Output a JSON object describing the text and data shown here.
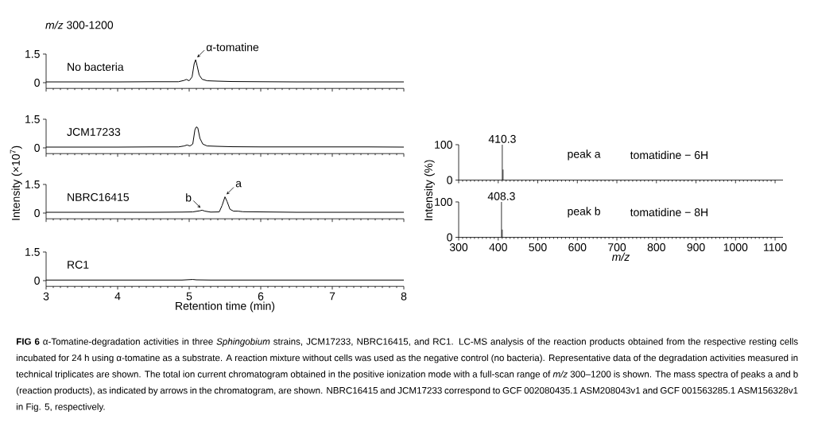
{
  "chart_data": [
    {
      "type": "line",
      "title": "*m/z* 300-1200",
      "xlim": [
        3,
        8
      ],
      "ylim": [
        -0.3,
        1.5
      ],
      "xticks": [
        3,
        4,
        5,
        6,
        7,
        8
      ],
      "yticks": [
        0,
        1.5
      ],
      "tick_labels": "y",
      "series": [
        {
          "name": "No bacteria",
          "color": "#000000",
          "x": [
            3,
            3.5,
            4,
            4.5,
            4.85,
            4.93,
            4.96,
            5.0,
            5.04,
            5.07,
            5.09,
            5.11,
            5.14,
            5.18,
            5.25,
            5.4,
            5.6,
            6,
            6.5,
            7,
            7.5,
            8
          ],
          "values": [
            0.04,
            0.04,
            0.04,
            0.05,
            0.05,
            0.12,
            0.17,
            0.1,
            0.3,
            1.0,
            1.2,
            0.9,
            0.4,
            0.18,
            0.1,
            0.08,
            0.06,
            0.05,
            0.04,
            0.04,
            0.04,
            0.04
          ]
        }
      ],
      "annotations": [
        {
          "text": "α-tomatine",
          "x": 5.09,
          "y": 1.2
        }
      ]
    },
    {
      "type": "line",
      "ylabel": "Intensity (×10$^{7}$)",
      "xlim": [
        3,
        8
      ],
      "ylim": [
        -0.3,
        1.5
      ],
      "xticks": [
        3,
        4,
        5,
        6,
        7,
        8
      ],
      "yticks": [
        0,
        1.5
      ],
      "tick_labels": "y",
      "series": [
        {
          "name": "JCM17233",
          "color": "#000000",
          "x": [
            3,
            3.5,
            4,
            4.5,
            4.85,
            4.93,
            4.97,
            5.01,
            5.05,
            5.08,
            5.1,
            5.12,
            5.15,
            5.19,
            5.25,
            5.4,
            5.6,
            6,
            6.5,
            7,
            7.5,
            8
          ],
          "values": [
            0.04,
            0.04,
            0.04,
            0.05,
            0.05,
            0.1,
            0.15,
            0.1,
            0.2,
            0.95,
            1.1,
            1.05,
            0.5,
            0.2,
            0.1,
            0.08,
            0.06,
            0.05,
            0.05,
            0.05,
            0.05,
            0.04
          ]
        }
      ]
    },
    {
      "type": "line",
      "xlim": [
        3,
        8
      ],
      "ylim": [
        -0.3,
        1.5
      ],
      "xticks": [
        3,
        4,
        5,
        6,
        7,
        8
      ],
      "yticks": [
        0,
        1.5
      ],
      "tick_labels": "y",
      "series": [
        {
          "name": "NBRC16415",
          "color": "#000000",
          "x": [
            3,
            3.5,
            4,
            4.5,
            4.9,
            5.05,
            5.1,
            5.15,
            5.18,
            5.22,
            5.3,
            5.42,
            5.46,
            5.5,
            5.53,
            5.57,
            5.62,
            5.68,
            5.75,
            6,
            6.5,
            7,
            7.5,
            8
          ],
          "values": [
            0.04,
            0.04,
            0.04,
            0.04,
            0.05,
            0.06,
            0.09,
            0.12,
            0.15,
            0.1,
            0.05,
            0.06,
            0.4,
            0.85,
            0.6,
            0.2,
            0.1,
            0.1,
            0.07,
            0.06,
            0.04,
            0.04,
            0.04,
            0.04
          ]
        }
      ],
      "annotations": [
        {
          "text": "b",
          "x": 5.18,
          "y": 0.15
        },
        {
          "text": "a",
          "x": 5.5,
          "y": 0.85
        }
      ]
    },
    {
      "type": "line",
      "xlabel": "Retention time (min)",
      "xlim": [
        3,
        8
      ],
      "ylim": [
        -0.3,
        1.5
      ],
      "xticks": [
        3,
        4,
        5,
        6,
        7,
        8
      ],
      "yticks": [
        0,
        1.5
      ],
      "series": [
        {
          "name": "RC1",
          "color": "#000000",
          "x": [
            3,
            4,
            4.9,
            5.0,
            5.05,
            5.1,
            5.3,
            6,
            7,
            8
          ],
          "values": [
            0.03,
            0.03,
            0.03,
            0.05,
            0.06,
            0.04,
            0.03,
            0.03,
            0.03,
            0.03
          ]
        }
      ],
      "annotations": [
        "**FIG 6** α-Tomatine-degradation activities in three *Sphingobium* strains, JCM17233, NBRC16415, and RC1. LC-MS analysis of the reaction products obtained from the respective resting cells incubated for 24 h using α-tomatine as a substrate. A reaction mixture without cells was used as the negative control (no bacteria). Representative data of the degradation activities measured in technical triplicates are shown. The total ion current chromatogram obtained in the positive ionization mode with a full-scan range of *m/z* 300–1200 is shown. The mass spectra of peaks a and b (reaction products), as indicated by arrows in the chromatogram, are shown. NBRC16415 and JCM17233 correspond to GCF 002080435.1 ASM208043v1 and GCF 001563285.1 ASM156328v1 in Fig. 5, respectively."
      ]
    },
    {
      "type": "bar",
      "ylabel": "Intensity (%)",
      "x": [
        410.3,
        412.3
      ],
      "values": [
        100,
        30
      ],
      "color": "#000000",
      "xlim": [
        300,
        1120
      ],
      "ylim": [
        0,
        100
      ],
      "xticks": [
        300,
        400,
        500,
        600,
        700,
        800,
        900,
        1000,
        1100
      ],
      "yticks": [
        0,
        100
      ],
      "tick_labels": "y",
      "annotations": [
        "410.3",
        "peak a",
        "tomatidine − 6H"
      ]
    },
    {
      "type": "bar",
      "xlabel": "m/z",
      "x": [
        408.3,
        410.3
      ],
      "values": [
        100,
        22
      ],
      "color": "#000000",
      "xlim": [
        300,
        1120
      ],
      "ylim": [
        0,
        100
      ],
      "xticks": [
        300,
        400,
        500,
        600,
        700,
        800,
        900,
        1000,
        1100
      ],
      "yticks": [
        0,
        100
      ],
      "annotations": [
        "408.3",
        "peak b",
        "tomatidine − 8H"
      ]
    }
  ]
}
